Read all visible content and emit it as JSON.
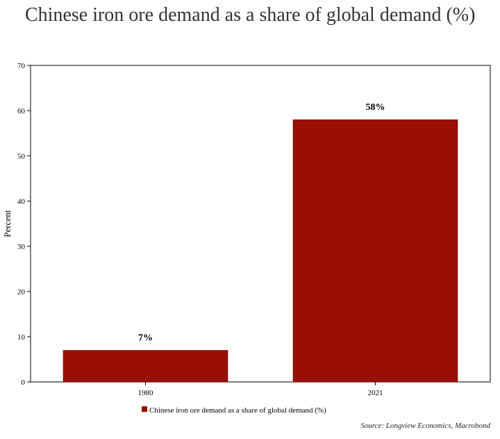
{
  "chart_data": {
    "type": "bar",
    "title": "Chinese iron ore demand as a share of global demand (%)",
    "categories": [
      "1980",
      "2021"
    ],
    "series": [
      {
        "name": "Chinese iron ore demand as a share of global demand (%)",
        "values": [
          7,
          58
        ],
        "data_labels": [
          "7%",
          "58%"
        ]
      }
    ],
    "xlabel": "",
    "ylabel": "Percent",
    "ylim": [
      0,
      70
    ],
    "yticks": [
      0,
      10,
      20,
      30,
      40,
      50,
      60,
      70
    ],
    "grid": false,
    "legend": "bottom-center",
    "source": "Source: Longview Economics, Macrobond",
    "colors": {
      "bar": "#990F02",
      "axis": "#000000",
      "frame": "#000000"
    }
  }
}
